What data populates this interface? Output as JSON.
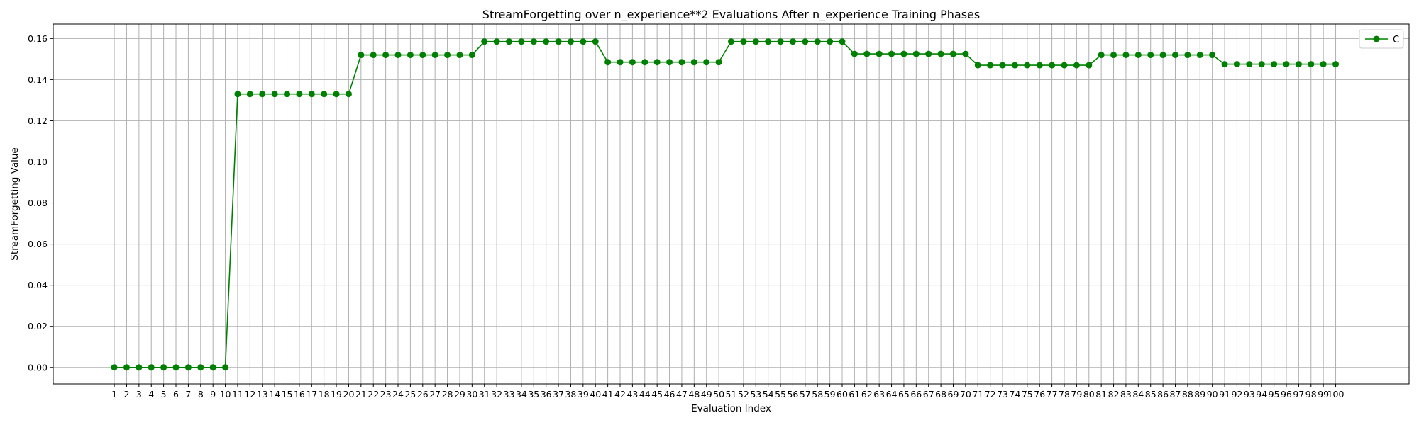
{
  "chart_data": {
    "type": "line",
    "title": "StreamForgetting over n_experience**2 Evaluations After n_experience Training Phases",
    "xlabel": "Evaluation Index",
    "ylabel": "StreamForgetting Value",
    "ylim": [
      -0.008,
      0.167
    ],
    "yticks": [
      0.0,
      0.02,
      0.04,
      0.06,
      0.08,
      0.1,
      0.12,
      0.14,
      0.16
    ],
    "yticklabels": [
      "0.00",
      "0.02",
      "0.04",
      "0.06",
      "0.08",
      "0.10",
      "0.12",
      "0.14",
      "0.16"
    ],
    "xlim": [
      -3.95,
      105.95
    ],
    "grid": true,
    "legend_position": "top-right",
    "x": [
      1,
      2,
      3,
      4,
      5,
      6,
      7,
      8,
      9,
      10,
      11,
      12,
      13,
      14,
      15,
      16,
      17,
      18,
      19,
      20,
      21,
      22,
      23,
      24,
      25,
      26,
      27,
      28,
      29,
      30,
      31,
      32,
      33,
      34,
      35,
      36,
      37,
      38,
      39,
      40,
      41,
      42,
      43,
      44,
      45,
      46,
      47,
      48,
      49,
      50,
      51,
      52,
      53,
      54,
      55,
      56,
      57,
      58,
      59,
      60,
      61,
      62,
      63,
      64,
      65,
      66,
      67,
      68,
      69,
      70,
      71,
      72,
      73,
      74,
      75,
      76,
      77,
      78,
      79,
      80,
      81,
      82,
      83,
      84,
      85,
      86,
      87,
      88,
      89,
      90,
      91,
      92,
      93,
      94,
      95,
      96,
      97,
      98,
      99,
      100
    ],
    "series": [
      {
        "name": "C",
        "color": "#008000",
        "marker": "circle",
        "values": [
          0,
          0,
          0,
          0,
          0,
          0,
          0,
          0,
          0,
          0,
          0.133,
          0.133,
          0.133,
          0.133,
          0.133,
          0.133,
          0.133,
          0.133,
          0.133,
          0.133,
          0.152,
          0.152,
          0.152,
          0.152,
          0.152,
          0.152,
          0.152,
          0.152,
          0.152,
          0.152,
          0.1585,
          0.1585,
          0.1585,
          0.1585,
          0.1585,
          0.1585,
          0.1585,
          0.1585,
          0.1585,
          0.1585,
          0.1485,
          0.1485,
          0.1485,
          0.1485,
          0.1485,
          0.1485,
          0.1485,
          0.1485,
          0.1485,
          0.1485,
          0.1585,
          0.1585,
          0.1585,
          0.1585,
          0.1585,
          0.1585,
          0.1585,
          0.1585,
          0.1585,
          0.1585,
          0.1525,
          0.1525,
          0.1525,
          0.1525,
          0.1525,
          0.1525,
          0.1525,
          0.1525,
          0.1525,
          0.1525,
          0.147,
          0.147,
          0.147,
          0.147,
          0.147,
          0.147,
          0.147,
          0.147,
          0.147,
          0.147,
          0.152,
          0.152,
          0.152,
          0.152,
          0.152,
          0.152,
          0.152,
          0.152,
          0.152,
          0.152,
          0.1475,
          0.1475,
          0.1475,
          0.1475,
          0.1475,
          0.1475,
          0.1475,
          0.1475,
          0.1475,
          0.1475
        ]
      }
    ]
  }
}
